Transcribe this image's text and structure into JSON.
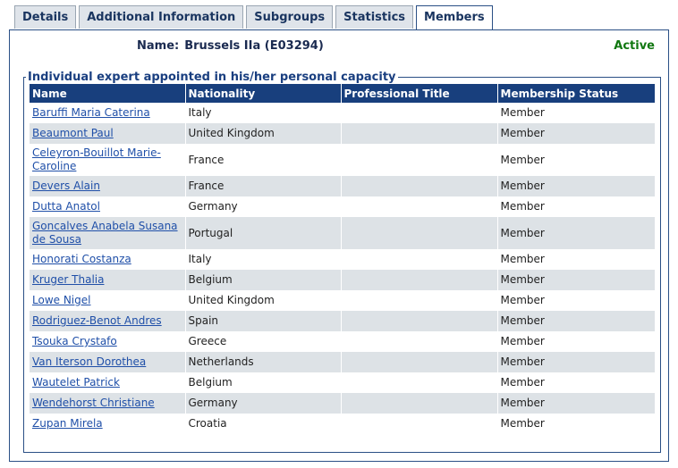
{
  "tabs": [
    "Details",
    "Additional Information",
    "Subgroups",
    "Statistics",
    "Members"
  ],
  "header": {
    "name_label": "Name:",
    "name": "Brussels IIa (E03294)",
    "status": "Active"
  },
  "section": {
    "legend": "Individual expert appointed in his/her personal capacity",
    "table": {
      "columns": [
        "Name",
        "Nationality",
        "Professional Title",
        "Membership Status"
      ],
      "rows": [
        {
          "name": "Baruffi Maria Caterina",
          "nationality": "Italy",
          "membership_status": "Member"
        },
        {
          "name": "Beaumont Paul",
          "nationality": "United Kingdom",
          "membership_status": "Member"
        },
        {
          "name": "Celeyron-Bouillot Marie-Caroline",
          "nationality": "France",
          "membership_status": "Member"
        },
        {
          "name": "Devers Alain",
          "nationality": "France",
          "membership_status": "Member"
        },
        {
          "name": "Dutta Anatol",
          "nationality": "Germany",
          "membership_status": "Member"
        },
        {
          "name": "Goncalves Anabela Susana de Sousa",
          "nationality": "Portugal",
          "membership_status": "Member"
        },
        {
          "name": "Honorati Costanza",
          "nationality": "Italy",
          "membership_status": "Member"
        },
        {
          "name": "Kruger Thalia",
          "nationality": "Belgium",
          "membership_status": "Member"
        },
        {
          "name": "Lowe Nigel",
          "nationality": "United Kingdom",
          "membership_status": "Member"
        },
        {
          "name": "Rodriguez-Benot Andres",
          "nationality": "Spain",
          "membership_status": "Member"
        },
        {
          "name": "Tsouka Crystafo",
          "nationality": "Greece",
          "membership_status": "Member"
        },
        {
          "name": "Van Iterson Dorothea",
          "nationality": "Netherlands",
          "membership_status": "Member"
        },
        {
          "name": "Wautelet Patrick",
          "nationality": "Belgium",
          "membership_status": "Member"
        },
        {
          "name": "Wendehorst Christiane",
          "nationality": "Germany",
          "membership_status": "Member"
        },
        {
          "name": "Zupan Mirela",
          "nationality": "Croatia",
          "membership_status": "Member"
        }
      ]
    }
  }
}
